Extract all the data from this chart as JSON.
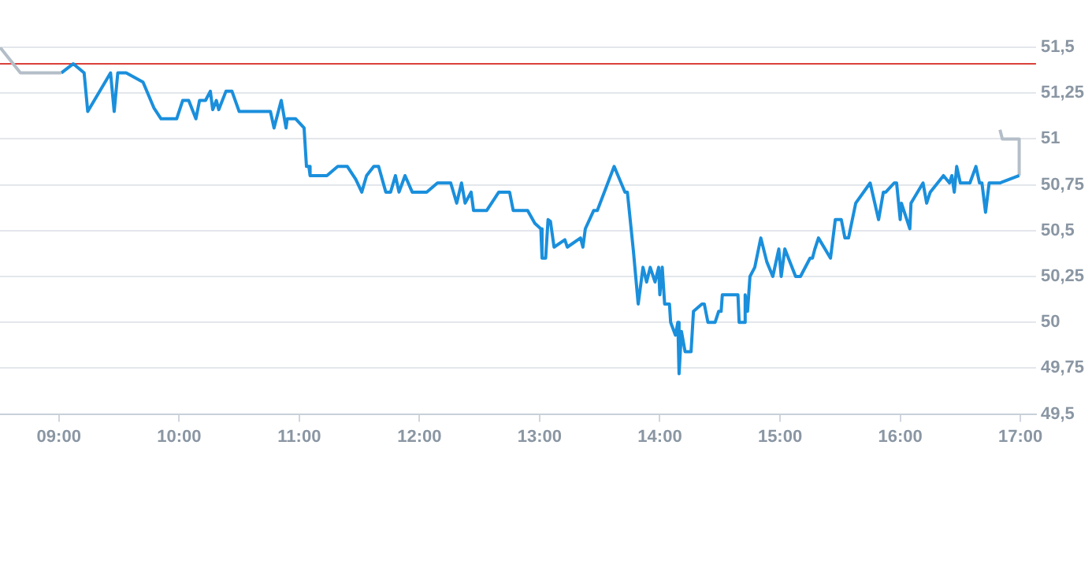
{
  "chart_data": {
    "type": "line",
    "marker": "none",
    "grid": "y",
    "xlim": [
      8.51,
      17.13
    ],
    "xticks": [
      {
        "value": 9,
        "label": "09:00"
      },
      {
        "value": 10,
        "label": "10:00"
      },
      {
        "value": 11,
        "label": "11:00"
      },
      {
        "value": 12,
        "label": "12:00"
      },
      {
        "value": 13,
        "label": "13:00"
      },
      {
        "value": 14,
        "label": "14:00"
      },
      {
        "value": 15,
        "label": "15:00"
      },
      {
        "value": 16,
        "label": "16:00"
      },
      {
        "value": 17,
        "label": "17:00"
      }
    ],
    "ylim": [
      49.5,
      51.5
    ],
    "yticks": [
      {
        "value": 49.5,
        "label": "49,5"
      },
      {
        "value": 49.75,
        "label": "49,75"
      },
      50,
      {
        "value": 50.25,
        "label": "50,25"
      },
      {
        "value": 50.5,
        "label": "50,5"
      },
      {
        "value": 50.75,
        "label": "50,75"
      },
      51,
      {
        "value": 51.25,
        "label": "51,25"
      },
      {
        "value": 51.5,
        "label": "51,5"
      }
    ],
    "ref_lines": [
      {
        "axis": "y",
        "value": 51.41,
        "color": "#d9403a"
      }
    ],
    "series": [
      {
        "color": "#b4bec8",
        "x": [
          8.51,
          8.68,
          9.02
        ],
        "values": [
          51.5,
          51.36,
          51.36
        ]
      },
      {
        "color": "#1a8fdc",
        "x": [
          9.02,
          9.12,
          9.21,
          9.24,
          9.43,
          9.46,
          9.49,
          9.56,
          9.7,
          9.79,
          9.85,
          9.98,
          10.03,
          10.08,
          10.14,
          10.17,
          10.22,
          10.26,
          10.28,
          10.31,
          10.33,
          10.39,
          10.44,
          10.5,
          10.76,
          10.79,
          10.85,
          10.89,
          10.9,
          10.97,
          11.04,
          11.06,
          11.08,
          11.09,
          11.23,
          11.32,
          11.4,
          11.47,
          11.52,
          11.56,
          11.62,
          11.66,
          11.72,
          11.76,
          11.8,
          11.83,
          11.88,
          11.94,
          12.06,
          12.15,
          12.26,
          12.31,
          12.35,
          12.38,
          12.43,
          12.45,
          12.56,
          12.66,
          12.75,
          12.78,
          12.9,
          12.96,
          13.01,
          13.02,
          13.05,
          13.07,
          13.09,
          13.12,
          13.21,
          13.23,
          13.34,
          13.36,
          13.38,
          13.45,
          13.48,
          13.62,
          13.71,
          13.73,
          13.78,
          13.82,
          13.86,
          13.89,
          13.92,
          13.96,
          13.99,
          14.0,
          14.02,
          14.04,
          14.08,
          14.09,
          14.13,
          14.15,
          14.16,
          14.18,
          14.21,
          14.26,
          14.28,
          14.35,
          14.37,
          14.4,
          14.46,
          14.49,
          14.51,
          14.52,
          14.65,
          14.66,
          14.7,
          14.71,
          14.73,
          14.75,
          14.79,
          14.84,
          14.89,
          14.94,
          14.99,
          15.01,
          15.04,
          15.07,
          15.13,
          15.17,
          15.25,
          15.27,
          15.29,
          15.32,
          15.42,
          15.46,
          15.51,
          15.54,
          15.57,
          15.63,
          15.75,
          15.82,
          15.86,
          15.88,
          15.95,
          15.97,
          16.0,
          16.01,
          16.08,
          16.09,
          16.19,
          16.22,
          16.25,
          16.36,
          16.41,
          16.43,
          16.45,
          16.47,
          16.5,
          16.58,
          16.63,
          16.66,
          16.68,
          16.71,
          16.74,
          16.83,
          16.99
        ],
        "values": [
          51.36,
          51.41,
          51.36,
          51.15,
          51.36,
          51.15,
          51.36,
          51.36,
          51.31,
          51.17,
          51.11,
          51.11,
          51.21,
          51.21,
          51.11,
          51.21,
          51.21,
          51.26,
          51.16,
          51.21,
          51.16,
          51.26,
          51.26,
          51.15,
          51.15,
          51.06,
          51.21,
          51.06,
          51.11,
          51.11,
          51.06,
          50.85,
          50.85,
          50.8,
          50.8,
          50.85,
          50.85,
          50.78,
          50.71,
          50.8,
          50.85,
          50.85,
          50.71,
          50.71,
          50.8,
          50.71,
          50.8,
          50.71,
          50.71,
          50.76,
          50.76,
          50.65,
          50.76,
          50.65,
          50.71,
          50.61,
          50.61,
          50.71,
          50.71,
          50.61,
          50.61,
          50.54,
          50.51,
          50.35,
          50.35,
          50.56,
          50.55,
          50.41,
          50.45,
          50.41,
          50.46,
          50.41,
          50.51,
          50.61,
          50.61,
          50.85,
          50.71,
          50.71,
          50.39,
          50.1,
          50.3,
          50.22,
          50.3,
          50.22,
          50.3,
          50.15,
          50.3,
          50.1,
          50.1,
          50.0,
          49.93,
          50.0,
          49.72,
          49.95,
          49.84,
          49.84,
          50.06,
          50.1,
          50.1,
          50.0,
          50.0,
          50.06,
          50.06,
          50.15,
          50.15,
          50.0,
          50.0,
          50.15,
          50.06,
          50.25,
          50.3,
          50.46,
          50.33,
          50.25,
          50.4,
          50.25,
          50.4,
          50.35,
          50.25,
          50.25,
          50.35,
          50.35,
          50.4,
          50.46,
          50.35,
          50.56,
          50.56,
          50.46,
          50.46,
          50.65,
          50.76,
          50.56,
          50.71,
          50.71,
          50.76,
          50.76,
          50.56,
          50.65,
          50.51,
          50.65,
          50.76,
          50.65,
          50.71,
          50.8,
          50.76,
          50.8,
          50.71,
          50.85,
          50.76,
          50.76,
          50.85,
          50.76,
          50.76,
          50.6,
          50.76,
          50.76,
          50.8
        ]
      },
      {
        "color": "#b4bec8",
        "x": [
          16.99,
          16.99,
          16.85,
          16.83
        ],
        "values": [
          50.8,
          51.0,
          51.0,
          51.05
        ]
      }
    ]
  }
}
